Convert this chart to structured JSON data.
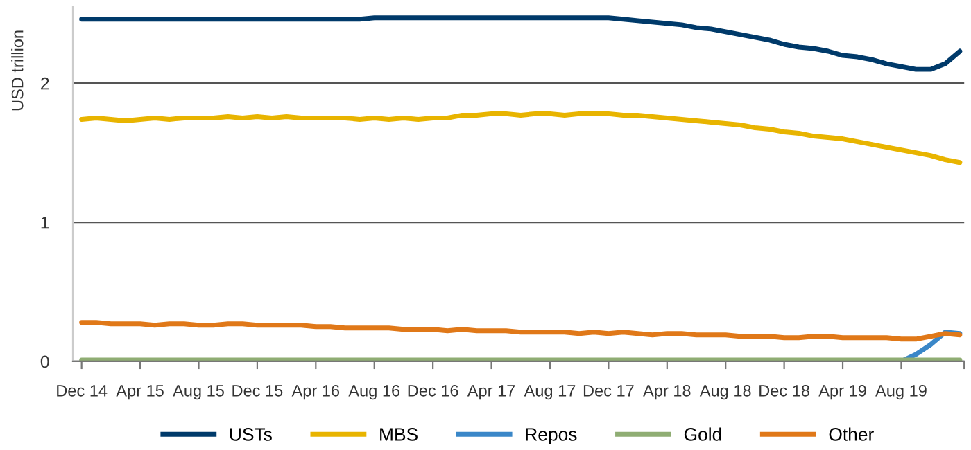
{
  "chart_data": {
    "type": "line",
    "ylabel": "USD trillion",
    "categories": [
      "Dec 14",
      null,
      null,
      null,
      "Apr 15",
      null,
      null,
      null,
      "Aug 15",
      null,
      null,
      null,
      "Dec 15",
      null,
      null,
      null,
      "Apr 16",
      null,
      null,
      null,
      "Aug 16",
      null,
      null,
      null,
      "Dec 16",
      null,
      null,
      null,
      "Apr 17",
      null,
      null,
      null,
      "Aug 17",
      null,
      null,
      null,
      "Dec 17",
      null,
      null,
      null,
      "Apr 18",
      null,
      null,
      null,
      "Aug 18",
      null,
      null,
      null,
      "Dec 18",
      null,
      null,
      null,
      "Apr 19",
      null,
      null,
      null,
      "Aug 19",
      null,
      null,
      null,
      null
    ],
    "ylim": [
      0,
      2.55
    ],
    "yticks": [
      0,
      1,
      2
    ],
    "grid": "y",
    "legend": "bottom",
    "marker": "none",
    "line_style": "solid",
    "series": [
      {
        "name": "USTs",
        "color": "#003a6a",
        "values": [
          2.46,
          2.46,
          2.46,
          2.46,
          2.46,
          2.46,
          2.46,
          2.46,
          2.46,
          2.46,
          2.46,
          2.46,
          2.46,
          2.46,
          2.46,
          2.46,
          2.46,
          2.46,
          2.46,
          2.46,
          2.47,
          2.47,
          2.47,
          2.47,
          2.47,
          2.47,
          2.47,
          2.47,
          2.47,
          2.47,
          2.47,
          2.47,
          2.47,
          2.47,
          2.47,
          2.47,
          2.47,
          2.46,
          2.45,
          2.44,
          2.43,
          2.42,
          2.4,
          2.39,
          2.37,
          2.35,
          2.33,
          2.31,
          2.28,
          2.26,
          2.25,
          2.23,
          2.2,
          2.19,
          2.17,
          2.14,
          2.12,
          2.1,
          2.1,
          2.14,
          2.23
        ]
      },
      {
        "name": "MBS",
        "color": "#e8b400",
        "values": [
          1.74,
          1.75,
          1.74,
          1.73,
          1.74,
          1.75,
          1.74,
          1.75,
          1.75,
          1.75,
          1.76,
          1.75,
          1.76,
          1.75,
          1.76,
          1.75,
          1.75,
          1.75,
          1.75,
          1.74,
          1.75,
          1.74,
          1.75,
          1.74,
          1.75,
          1.75,
          1.77,
          1.77,
          1.78,
          1.78,
          1.77,
          1.78,
          1.78,
          1.77,
          1.78,
          1.78,
          1.78,
          1.77,
          1.77,
          1.76,
          1.75,
          1.74,
          1.73,
          1.72,
          1.71,
          1.7,
          1.68,
          1.67,
          1.65,
          1.64,
          1.62,
          1.61,
          1.6,
          1.58,
          1.56,
          1.54,
          1.52,
          1.5,
          1.48,
          1.45,
          1.43
        ]
      },
      {
        "name": "Repos",
        "color": "#3a87c8",
        "values": [
          null,
          null,
          null,
          null,
          null,
          null,
          null,
          null,
          null,
          null,
          null,
          null,
          null,
          null,
          null,
          null,
          null,
          null,
          null,
          null,
          null,
          null,
          null,
          null,
          null,
          null,
          null,
          null,
          null,
          null,
          null,
          null,
          null,
          null,
          null,
          null,
          null,
          null,
          null,
          null,
          null,
          null,
          null,
          null,
          null,
          null,
          null,
          null,
          null,
          null,
          null,
          null,
          null,
          null,
          null,
          null,
          0,
          0.05,
          0.12,
          0.21,
          0.2
        ]
      },
      {
        "name": "Gold",
        "color": "#8fad73",
        "values": [
          0.01,
          0.01,
          0.01,
          0.01,
          0.01,
          0.01,
          0.01,
          0.01,
          0.01,
          0.01,
          0.01,
          0.01,
          0.01,
          0.01,
          0.01,
          0.01,
          0.01,
          0.01,
          0.01,
          0.01,
          0.01,
          0.01,
          0.01,
          0.01,
          0.01,
          0.01,
          0.01,
          0.01,
          0.01,
          0.01,
          0.01,
          0.01,
          0.01,
          0.01,
          0.01,
          0.01,
          0.01,
          0.01,
          0.01,
          0.01,
          0.01,
          0.01,
          0.01,
          0.01,
          0.01,
          0.01,
          0.01,
          0.01,
          0.01,
          0.01,
          0.01,
          0.01,
          0.01,
          0.01,
          0.01,
          0.01,
          0.01,
          0.01,
          0.01,
          0.01,
          0.01
        ]
      },
      {
        "name": "Other",
        "color": "#e07818",
        "values": [
          0.28,
          0.28,
          0.27,
          0.27,
          0.27,
          0.26,
          0.27,
          0.27,
          0.26,
          0.26,
          0.27,
          0.27,
          0.26,
          0.26,
          0.26,
          0.26,
          0.25,
          0.25,
          0.24,
          0.24,
          0.24,
          0.24,
          0.23,
          0.23,
          0.23,
          0.22,
          0.23,
          0.22,
          0.22,
          0.22,
          0.21,
          0.21,
          0.21,
          0.21,
          0.2,
          0.21,
          0.2,
          0.21,
          0.2,
          0.19,
          0.2,
          0.2,
          0.19,
          0.19,
          0.19,
          0.18,
          0.18,
          0.18,
          0.17,
          0.17,
          0.18,
          0.18,
          0.17,
          0.17,
          0.17,
          0.17,
          0.16,
          0.16,
          0.18,
          0.2,
          0.19
        ]
      }
    ]
  }
}
